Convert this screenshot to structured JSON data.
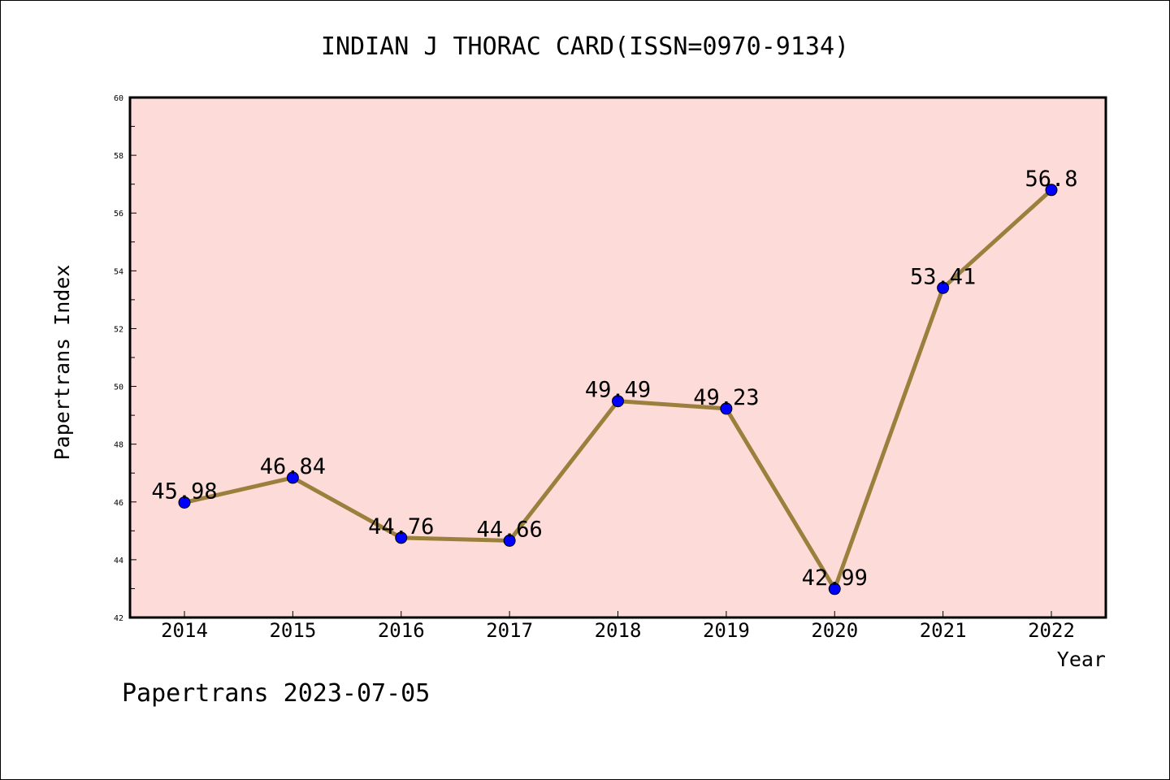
{
  "chart_data": {
    "type": "line",
    "title": "INDIAN J THORAC CARD(ISSN=0970-9134)",
    "xlabel": "Year",
    "ylabel": "Papertrans Index",
    "categories": [
      "2014",
      "2015",
      "2016",
      "2017",
      "2018",
      "2019",
      "2020",
      "2021",
      "2022"
    ],
    "series": [
      {
        "values": [
          45.98,
          46.84,
          44.76,
          44.66,
          49.49,
          49.23,
          42.99,
          53.41,
          56.8
        ],
        "labels": [
          "45.98",
          "46.84",
          "44.76",
          "44.66",
          "49.49",
          "49.23",
          "42.99",
          "53.41",
          "56.8"
        ]
      }
    ],
    "ylim": [
      42,
      60
    ],
    "yticks": [
      42,
      44,
      46,
      48,
      50,
      52,
      54,
      56,
      58,
      60
    ],
    "ytick_labels": [
      "42",
      "44",
      "46",
      "48",
      "50",
      "52",
      "54",
      "56",
      "58",
      "60"
    ],
    "grid": false,
    "legend": "none"
  },
  "footer": "Papertrans 2023-07-05",
  "colors": {
    "plot_background": "#fddbd8",
    "line": "#9b7f3c",
    "marker": "#0000ff",
    "axis": "#000000"
  }
}
